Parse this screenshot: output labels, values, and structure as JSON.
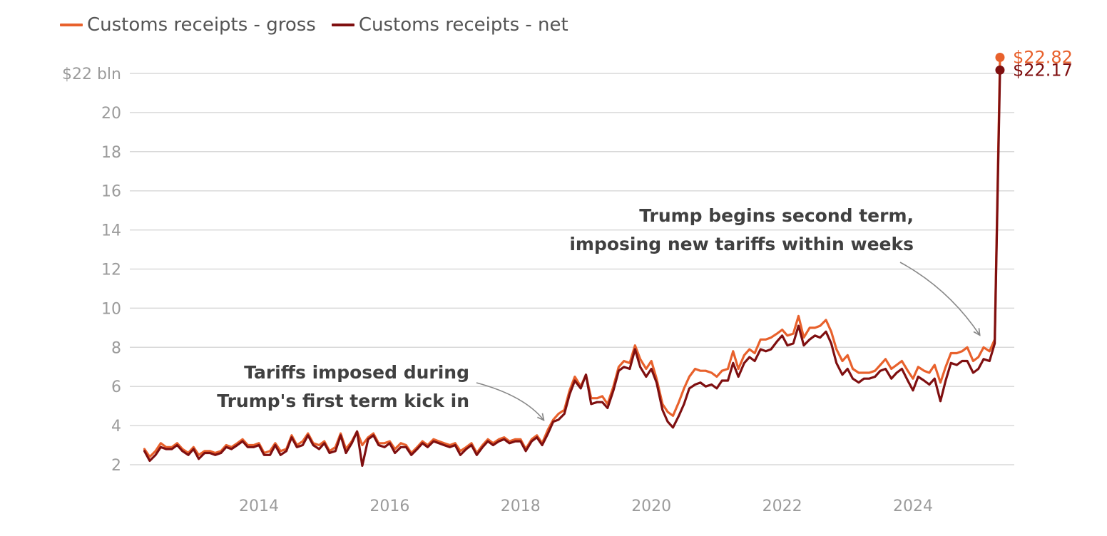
{
  "legend": {
    "gross_label": "Customs receipts - gross",
    "net_label": "Customs receipts - net"
  },
  "colors": {
    "gross": "#e8612c",
    "net": "#7f0f10",
    "grid": "#d9d9d9",
    "tick": "#9b9b9b",
    "annotation": "#404040",
    "arrow": "#888888"
  },
  "chart_data": {
    "type": "line",
    "title": "",
    "xlabel": "",
    "ylabel": "",
    "y_tick_values": [
      2,
      4,
      6,
      8,
      10,
      12,
      14,
      16,
      18,
      20,
      22
    ],
    "y_tick_labels": [
      "2",
      "4",
      "6",
      "8",
      "10",
      "12",
      "14",
      "16",
      "18",
      "20",
      "$22 bln"
    ],
    "ylim": [
      1.5,
      22.5
    ],
    "x_tick_values": [
      2014,
      2016,
      2018,
      2020,
      2022,
      2024
    ],
    "x_tick_labels": [
      "2014",
      "2016",
      "2018",
      "2020",
      "2022",
      "2024"
    ],
    "xlim": [
      2012.2,
      2025.6
    ],
    "grid": true,
    "legend_position": "top-left",
    "x": [
      2012.25,
      2012.33,
      2012.42,
      2012.5,
      2012.58,
      2012.67,
      2012.75,
      2012.83,
      2012.92,
      2013.0,
      2013.08,
      2013.17,
      2013.25,
      2013.33,
      2013.42,
      2013.5,
      2013.58,
      2013.67,
      2013.75,
      2013.83,
      2013.92,
      2014.0,
      2014.08,
      2014.17,
      2014.25,
      2014.33,
      2014.42,
      2014.5,
      2014.58,
      2014.67,
      2014.75,
      2014.83,
      2014.92,
      2015.0,
      2015.08,
      2015.17,
      2015.25,
      2015.33,
      2015.42,
      2015.5,
      2015.58,
      2015.67,
      2015.75,
      2015.83,
      2015.92,
      2016.0,
      2016.08,
      2016.17,
      2016.25,
      2016.33,
      2016.42,
      2016.5,
      2016.58,
      2016.67,
      2016.75,
      2016.83,
      2016.92,
      2017.0,
      2017.08,
      2017.17,
      2017.25,
      2017.33,
      2017.42,
      2017.5,
      2017.58,
      2017.67,
      2017.75,
      2017.83,
      2017.92,
      2018.0,
      2018.08,
      2018.17,
      2018.25,
      2018.33,
      2018.42,
      2018.5,
      2018.58,
      2018.67,
      2018.75,
      2018.83,
      2018.92,
      2019.0,
      2019.08,
      2019.17,
      2019.25,
      2019.33,
      2019.42,
      2019.5,
      2019.58,
      2019.67,
      2019.75,
      2019.83,
      2019.92,
      2020.0,
      2020.08,
      2020.17,
      2020.25,
      2020.33,
      2020.42,
      2020.5,
      2020.58,
      2020.67,
      2020.75,
      2020.83,
      2020.92,
      2021.0,
      2021.08,
      2021.17,
      2021.25,
      2021.33,
      2021.42,
      2021.5,
      2021.58,
      2021.67,
      2021.75,
      2021.83,
      2021.92,
      2022.0,
      2022.08,
      2022.17,
      2022.25,
      2022.33,
      2022.42,
      2022.5,
      2022.58,
      2022.67,
      2022.75,
      2022.83,
      2022.92,
      2023.0,
      2023.08,
      2023.17,
      2023.25,
      2023.33,
      2023.42,
      2023.5,
      2023.58,
      2023.67,
      2023.75,
      2023.83,
      2023.92,
      2024.0,
      2024.08,
      2024.17,
      2024.25,
      2024.33,
      2024.42,
      2024.5,
      2024.58,
      2024.67,
      2024.75,
      2024.83,
      2024.92,
      2025.0,
      2025.08,
      2025.17,
      2025.25,
      2025.33
    ],
    "series": [
      {
        "name": "Customs receipts - gross",
        "end_label": "$22.82",
        "values": [
          2.8,
          2.4,
          2.7,
          3.1,
          2.9,
          2.9,
          3.1,
          2.8,
          2.6,
          2.9,
          2.5,
          2.7,
          2.7,
          2.6,
          2.7,
          3.0,
          2.9,
          3.1,
          3.3,
          3.0,
          3.0,
          3.1,
          2.6,
          2.7,
          3.1,
          2.7,
          2.8,
          3.5,
          3.0,
          3.2,
          3.6,
          3.1,
          3.0,
          3.2,
          2.7,
          2.9,
          3.6,
          2.8,
          3.2,
          3.7,
          3.0,
          3.4,
          3.6,
          3.1,
          3.1,
          3.2,
          2.8,
          3.1,
          3.0,
          2.6,
          2.9,
          3.2,
          3.0,
          3.3,
          3.2,
          3.1,
          3.0,
          3.1,
          2.7,
          2.9,
          3.1,
          2.6,
          3.0,
          3.3,
          3.1,
          3.3,
          3.4,
          3.2,
          3.3,
          3.3,
          2.8,
          3.3,
          3.5,
          3.1,
          3.8,
          4.3,
          4.6,
          4.8,
          5.8,
          6.5,
          6.0,
          6.6,
          5.4,
          5.4,
          5.5,
          5.1,
          6.0,
          7.0,
          7.3,
          7.2,
          8.1,
          7.4,
          6.9,
          7.3,
          6.4,
          5.1,
          4.7,
          4.5,
          5.2,
          5.9,
          6.5,
          6.9,
          6.8,
          6.8,
          6.7,
          6.5,
          6.8,
          6.9,
          7.8,
          6.9,
          7.6,
          7.9,
          7.7,
          8.4,
          8.4,
          8.5,
          8.7,
          8.9,
          8.6,
          8.7,
          9.6,
          8.5,
          9.0,
          9.0,
          9.1,
          9.4,
          8.8,
          7.9,
          7.3,
          7.6,
          6.9,
          6.7,
          6.7,
          6.7,
          6.8,
          7.1,
          7.4,
          6.9,
          7.1,
          7.3,
          6.8,
          6.4,
          7.0,
          6.8,
          6.7,
          7.1,
          6.2,
          7.0,
          7.7,
          7.7,
          7.8,
          8.0,
          7.3,
          7.5,
          8.0,
          7.8,
          8.4,
          22.82
        ]
      },
      {
        "name": "Customs receipts - net",
        "end_label": "$22.17",
        "values": [
          2.7,
          2.2,
          2.5,
          2.9,
          2.8,
          2.8,
          3.0,
          2.7,
          2.5,
          2.8,
          2.3,
          2.6,
          2.6,
          2.5,
          2.6,
          2.9,
          2.8,
          3.0,
          3.2,
          2.9,
          2.9,
          3.0,
          2.5,
          2.5,
          3.0,
          2.5,
          2.7,
          3.4,
          2.9,
          3.0,
          3.5,
          3.0,
          2.8,
          3.1,
          2.6,
          2.7,
          3.5,
          2.6,
          3.1,
          3.7,
          1.95,
          3.3,
          3.5,
          3.0,
          2.9,
          3.1,
          2.6,
          2.9,
          2.9,
          2.5,
          2.8,
          3.1,
          2.9,
          3.2,
          3.1,
          3.0,
          2.9,
          3.0,
          2.5,
          2.8,
          3.0,
          2.5,
          2.9,
          3.2,
          3.0,
          3.2,
          3.3,
          3.1,
          3.2,
          3.2,
          2.7,
          3.2,
          3.4,
          3.0,
          3.6,
          4.2,
          4.3,
          4.6,
          5.6,
          6.3,
          5.9,
          6.6,
          5.1,
          5.2,
          5.2,
          4.9,
          5.8,
          6.8,
          7.0,
          6.9,
          7.9,
          7.0,
          6.5,
          6.9,
          6.2,
          4.8,
          4.2,
          3.9,
          4.5,
          5.1,
          5.9,
          6.1,
          6.2,
          6.0,
          6.1,
          5.9,
          6.3,
          6.3,
          7.2,
          6.5,
          7.2,
          7.5,
          7.3,
          7.9,
          7.8,
          7.9,
          8.3,
          8.6,
          8.1,
          8.2,
          9.1,
          8.1,
          8.4,
          8.6,
          8.5,
          8.8,
          8.2,
          7.2,
          6.6,
          6.9,
          6.4,
          6.2,
          6.4,
          6.4,
          6.5,
          6.8,
          6.9,
          6.4,
          6.7,
          6.9,
          6.3,
          5.8,
          6.5,
          6.3,
          6.1,
          6.4,
          5.25,
          6.3,
          7.2,
          7.1,
          7.3,
          7.3,
          6.7,
          6.9,
          7.4,
          7.3,
          8.2,
          22.17
        ]
      }
    ],
    "annotations": [
      {
        "lines": [
          "Tariffs imposed during",
          "Trump's first term kick in"
        ],
        "target_x": 2018.4,
        "target_y": 4.2
      },
      {
        "lines": [
          "Trump begins second term,",
          "imposing new tariffs within weeks"
        ],
        "target_x": 2025.0,
        "target_y": 8.4
      }
    ]
  }
}
